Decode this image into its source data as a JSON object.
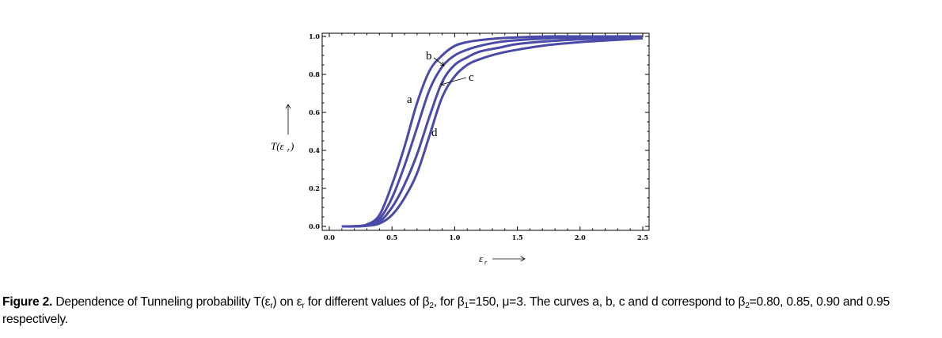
{
  "chart_data": {
    "type": "line",
    "title": "",
    "xlabel": "ε_r",
    "ylabel": "T(ε_r)",
    "xlim": [
      0,
      2.5
    ],
    "ylim": [
      0,
      1.0
    ],
    "grid": false,
    "legend": "none (curves labeled inline with arrows)",
    "xticks": [
      "0.0",
      "0.5",
      "1.0",
      "1.5",
      "2.0",
      "2.5"
    ],
    "yticks": [
      "0.0",
      "0.2",
      "0.4",
      "0.6",
      "0.8",
      "1.0"
    ],
    "x": [
      0.1,
      0.2,
      0.3,
      0.4,
      0.5,
      0.6,
      0.7,
      0.8,
      0.9,
      1.0,
      1.1,
      1.2,
      1.35,
      1.5,
      1.75,
      2.0,
      2.25,
      2.5
    ],
    "series": [
      {
        "name": "a",
        "values": [
          0,
          0.001,
          0.01,
          0.06,
          0.22,
          0.42,
          0.65,
          0.82,
          0.9,
          0.95,
          0.97,
          0.98,
          0.99,
          0.995,
          1.0,
          1.0,
          1.0,
          1.0
        ]
      },
      {
        "name": "b",
        "values": [
          0,
          0.001,
          0.007,
          0.04,
          0.15,
          0.32,
          0.52,
          0.72,
          0.84,
          0.9,
          0.93,
          0.95,
          0.97,
          0.98,
          0.99,
          0.995,
          1.0,
          1.0
        ]
      },
      {
        "name": "c",
        "values": [
          0,
          0,
          0.005,
          0.025,
          0.1,
          0.22,
          0.38,
          0.58,
          0.76,
          0.85,
          0.89,
          0.92,
          0.94,
          0.96,
          0.975,
          0.985,
          0.99,
          0.995
        ]
      },
      {
        "name": "d",
        "values": [
          0,
          0,
          0.003,
          0.015,
          0.06,
          0.15,
          0.28,
          0.48,
          0.68,
          0.79,
          0.85,
          0.88,
          0.91,
          0.93,
          0.955,
          0.97,
          0.98,
          0.99
        ]
      }
    ],
    "curve_color": "#4a4aa8"
  },
  "caption": {
    "label": "Figure 2.",
    "t1": " Dependence of Tunneling probability T(ε",
    "s1": "r",
    "t2": ") on ε",
    "s2": "r",
    "t3": " for different values of β",
    "s3": "2",
    "t4": ", for β",
    "s4": "1",
    "t5": "=150, μ=3. The curves a, b, c and d correspond to β",
    "s5": "2",
    "t6": "=0.80, 0.85, 0.90 and 0.95 respectively."
  }
}
